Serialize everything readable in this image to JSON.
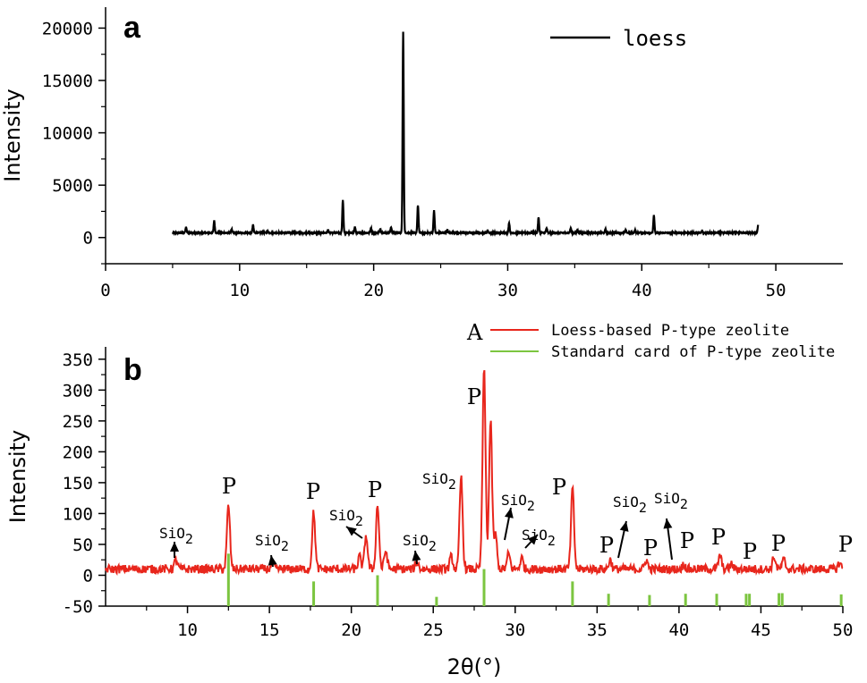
{
  "chart_data": [
    {
      "panel": "a",
      "type": "line",
      "xlabel": "",
      "ylabel": "Intensity",
      "xlim": [
        0,
        55
      ],
      "ylim": [
        -2500,
        22000
      ],
      "xticks": [
        0,
        10,
        20,
        30,
        40,
        50
      ],
      "yticks": [
        0,
        5000,
        10000,
        15000,
        20000
      ],
      "series": [
        {
          "name": "loess",
          "color": "#000000",
          "baseline": 450,
          "x_range": [
            5,
            48.7
          ],
          "peaks": [
            {
              "x": 6.0,
              "y": 1000
            },
            {
              "x": 8.1,
              "y": 1600
            },
            {
              "x": 9.4,
              "y": 800
            },
            {
              "x": 11.0,
              "y": 1200
            },
            {
              "x": 12.1,
              "y": 600
            },
            {
              "x": 16.6,
              "y": 700
            },
            {
              "x": 17.7,
              "y": 3600
            },
            {
              "x": 18.6,
              "y": 1000
            },
            {
              "x": 19.8,
              "y": 900
            },
            {
              "x": 20.5,
              "y": 800
            },
            {
              "x": 21.3,
              "y": 1000
            },
            {
              "x": 22.2,
              "y": 19600
            },
            {
              "x": 23.3,
              "y": 3100
            },
            {
              "x": 24.5,
              "y": 2600
            },
            {
              "x": 25.5,
              "y": 700
            },
            {
              "x": 28.5,
              "y": 700
            },
            {
              "x": 30.1,
              "y": 1400
            },
            {
              "x": 32.3,
              "y": 1900
            },
            {
              "x": 32.9,
              "y": 900
            },
            {
              "x": 34.7,
              "y": 900
            },
            {
              "x": 35.2,
              "y": 700
            },
            {
              "x": 37.3,
              "y": 800
            },
            {
              "x": 38.8,
              "y": 700
            },
            {
              "x": 39.5,
              "y": 700
            },
            {
              "x": 40.9,
              "y": 2100
            },
            {
              "x": 44.5,
              "y": 600
            },
            {
              "x": 46.9,
              "y": 500
            },
            {
              "x": 48.7,
              "y": 1300
            }
          ]
        }
      ],
      "legend": "top-right"
    },
    {
      "panel": "b",
      "type": "line",
      "xlabel": "2θ(°)",
      "ylabel": "Intensity",
      "xlim": [
        5,
        50
      ],
      "ylim": [
        -50,
        370
      ],
      "xticks": [
        10,
        15,
        20,
        25,
        30,
        35,
        40,
        45,
        50
      ],
      "yticks": [
        -50,
        0,
        50,
        100,
        150,
        200,
        250,
        300,
        350
      ],
      "series": [
        {
          "name": "Loess-based P-type zeolite",
          "color": "#e8261c",
          "baseline": 10,
          "x_range": [
            5,
            50
          ],
          "peaks": [
            {
              "x": 9.3,
              "y": 25
            },
            {
              "x": 12.5,
              "y": 113
            },
            {
              "x": 15.2,
              "y": 18
            },
            {
              "x": 17.7,
              "y": 102
            },
            {
              "x": 20.5,
              "y": 30
            },
            {
              "x": 20.9,
              "y": 65
            },
            {
              "x": 21.6,
              "y": 114
            },
            {
              "x": 22.1,
              "y": 40
            },
            {
              "x": 24.0,
              "y": 22
            },
            {
              "x": 26.1,
              "y": 30
            },
            {
              "x": 26.7,
              "y": 160
            },
            {
              "x": 28.1,
              "y": 333
            },
            {
              "x": 28.5,
              "y": 250
            },
            {
              "x": 28.8,
              "y": 65
            },
            {
              "x": 29.6,
              "y": 35
            },
            {
              "x": 30.4,
              "y": 28
            },
            {
              "x": 33.5,
              "y": 140
            },
            {
              "x": 35.8,
              "y": 25
            },
            {
              "x": 38.0,
              "y": 25
            },
            {
              "x": 40.3,
              "y": 18
            },
            {
              "x": 42.5,
              "y": 32
            },
            {
              "x": 43.2,
              "y": 18
            },
            {
              "x": 45.8,
              "y": 30
            },
            {
              "x": 46.4,
              "y": 25
            },
            {
              "x": 49.8,
              "y": 20
            }
          ]
        },
        {
          "name": "Standard card of P-type zeolite",
          "color": "#7cc540",
          "type": "stick",
          "x": [
            12.5,
            17.7,
            21.6,
            25.2,
            28.1,
            33.5,
            35.7,
            38.2,
            40.4,
            42.3,
            44.1,
            44.3,
            46.1,
            46.3,
            49.9
          ],
          "y": [
            35,
            -10,
            0,
            -35,
            10,
            -10,
            -30,
            -32,
            -30,
            -30,
            -30,
            -30,
            -29,
            -29,
            -31
          ],
          "base": -50
        }
      ],
      "annotations": [
        {
          "id": "A",
          "text": "A"
        },
        {
          "id": "p1",
          "text": "P"
        },
        {
          "id": "p2",
          "text": "P"
        },
        {
          "id": "p3",
          "text": "P"
        },
        {
          "id": "p4",
          "text": "P"
        },
        {
          "id": "p5",
          "text": "P"
        },
        {
          "id": "p6",
          "text": "P"
        },
        {
          "id": "p7",
          "text": "P"
        },
        {
          "id": "p8",
          "text": "P"
        },
        {
          "id": "p9",
          "text": "P"
        },
        {
          "id": "p10",
          "text": "P"
        },
        {
          "id": "p11",
          "text": "P"
        },
        {
          "id": "p12",
          "text": "P"
        },
        {
          "id": "si1",
          "text": "SiO"
        },
        {
          "id": "si2",
          "text": "SiO"
        },
        {
          "id": "si3",
          "text": "SiO"
        },
        {
          "id": "si4",
          "text": "SiO"
        },
        {
          "id": "si5",
          "text": "SiO"
        },
        {
          "id": "si6",
          "text": "SiO"
        },
        {
          "id": "si7",
          "text": "SiO"
        },
        {
          "id": "si8",
          "text": "SiO"
        },
        {
          "id": "si9",
          "text": "SiO"
        }
      ],
      "subscript": "2",
      "legend": "top-right"
    }
  ]
}
